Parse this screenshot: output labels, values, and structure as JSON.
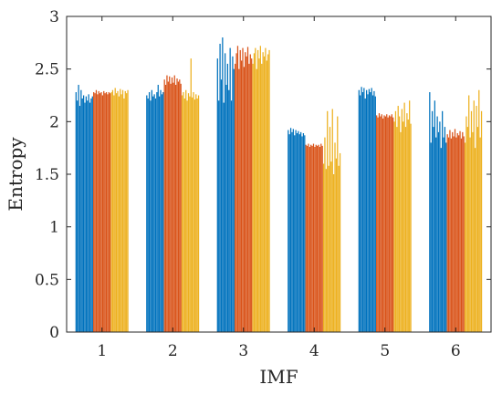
{
  "chart_data": {
    "type": "bar",
    "xlabel": "IMF",
    "ylabel": "Entropy",
    "ylim": [
      0,
      3
    ],
    "yticks": [
      "0",
      "0.5",
      "1",
      "1.5",
      "2",
      "2.5",
      "3"
    ],
    "categories": [
      "1",
      "2",
      "3",
      "4",
      "5",
      "6"
    ],
    "box": true,
    "grid": false,
    "colors": {
      "blue": "#0072bd",
      "orange": "#d95319",
      "yellow": "#edb120"
    },
    "series": [
      {
        "color": "#0072bd",
        "values": [
          [
            2.28,
            2.2,
            2.35,
            2.15,
            2.3,
            2.22,
            2.25,
            2.18,
            2.24,
            2.2,
            2.26,
            2.18,
            2.22,
            2.24
          ],
          [
            2.25,
            2.22,
            2.28,
            2.2,
            2.3,
            2.24,
            2.26,
            2.22,
            2.28,
            2.35,
            2.24,
            2.3,
            2.26,
            2.28
          ],
          [
            2.6,
            2.2,
            2.74,
            2.4,
            2.8,
            2.18,
            2.65,
            2.35,
            2.55,
            2.3,
            2.7,
            2.2,
            2.62,
            2.5
          ],
          [
            1.92,
            1.88,
            1.94,
            1.9,
            1.93,
            1.87,
            1.92,
            1.89,
            1.91,
            1.88,
            1.9,
            1.86,
            1.89,
            1.87
          ],
          [
            2.3,
            2.25,
            2.33,
            2.28,
            2.32,
            2.22,
            2.3,
            2.26,
            2.31,
            2.28,
            2.32,
            2.25,
            2.29,
            2.24
          ],
          [
            2.28,
            1.8,
            2.1,
            1.95,
            2.2,
            1.85,
            2.05,
            1.9,
            2.0,
            1.75,
            2.1,
            1.85,
            1.95,
            1.8
          ]
        ]
      },
      {
        "color": "#d95319",
        "values": [
          [
            2.28,
            2.27,
            2.3,
            2.26,
            2.29,
            2.27,
            2.28,
            2.25,
            2.29,
            2.27,
            2.28,
            2.26,
            2.28,
            2.27
          ],
          [
            2.4,
            2.35,
            2.44,
            2.38,
            2.43,
            2.36,
            2.42,
            2.37,
            2.44,
            2.35,
            2.41,
            2.38,
            2.4,
            2.36
          ],
          [
            2.55,
            2.65,
            2.72,
            2.5,
            2.68,
            2.58,
            2.7,
            2.52,
            2.66,
            2.62,
            2.71,
            2.55,
            2.64,
            2.6
          ],
          [
            1.78,
            1.77,
            1.79,
            1.76,
            1.78,
            1.77,
            1.79,
            1.76,
            1.78,
            1.77,
            1.78,
            1.76,
            1.79,
            1.77
          ],
          [
            2.06,
            2.04,
            2.08,
            2.05,
            2.07,
            2.03,
            2.06,
            2.05,
            2.07,
            2.04,
            2.06,
            2.05,
            2.07,
            2.04
          ],
          [
            1.88,
            1.85,
            1.92,
            1.84,
            1.9,
            1.86,
            1.93,
            1.85,
            1.89,
            1.87,
            1.91,
            1.84,
            1.9,
            1.86
          ]
        ]
      },
      {
        "color": "#edb120",
        "values": [
          [
            2.28,
            2.3,
            2.25,
            2.32,
            2.27,
            2.29,
            2.24,
            2.31,
            2.26,
            2.3,
            2.22,
            2.29,
            2.27,
            2.3
          ],
          [
            2.25,
            2.28,
            2.22,
            2.3,
            2.2,
            2.27,
            2.24,
            2.6,
            2.23,
            2.28,
            2.21,
            2.26,
            2.22,
            2.25
          ],
          [
            2.55,
            2.65,
            2.7,
            2.5,
            2.68,
            2.6,
            2.72,
            2.55,
            2.66,
            2.62,
            2.7,
            2.58,
            2.64,
            2.68
          ],
          [
            1.6,
            1.85,
            1.55,
            2.1,
            1.58,
            1.95,
            1.62,
            2.12,
            1.5,
            1.8,
            1.65,
            2.05,
            1.58,
            1.7
          ],
          [
            2.0,
            2.1,
            1.95,
            2.15,
            2.05,
            1.9,
            2.12,
            2.0,
            2.18,
            1.95,
            2.08,
            2.02,
            2.2,
            1.98
          ],
          [
            1.8,
            2.05,
            1.95,
            2.25,
            1.85,
            2.1,
            1.9,
            2.2,
            1.75,
            2.15,
            1.95,
            2.3,
            1.85,
            2.1
          ]
        ]
      }
    ]
  }
}
